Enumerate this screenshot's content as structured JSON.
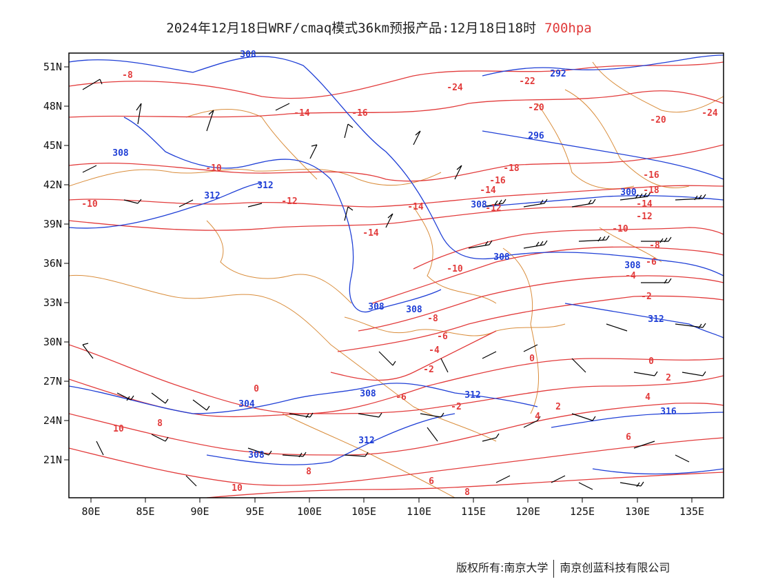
{
  "title": {
    "main": "2024年12月18日WRF/cmaq模式36km预报产品:12月18日18时",
    "level": "700hpa"
  },
  "colors": {
    "temperature": "#e23b3b",
    "height": "#1f3fd6",
    "wind": "#000000",
    "border": "#d98c3a",
    "frame": "#000000"
  },
  "axes": {
    "lat_labels": [
      "51N",
      "48N",
      "45N",
      "42N",
      "39N",
      "36N",
      "33N",
      "30N",
      "27N",
      "24N",
      "21N"
    ],
    "lon_labels": [
      "80E",
      "85E",
      "90E",
      "95E",
      "100E",
      "105E",
      "110E",
      "115E",
      "120E",
      "125E",
      "130E",
      "135E"
    ]
  },
  "contours": {
    "temperature_labels": [
      "-8",
      "-24",
      "-22",
      "-14",
      "-16",
      "-20",
      "-20",
      "-24",
      "-10",
      "-18",
      "-16",
      "-14",
      "-12",
      "-14",
      "-12",
      "-10",
      "-14",
      "-16",
      "-18",
      "-14",
      "-12",
      "-10",
      "-8",
      "-6",
      "-4",
      "-10",
      "-8",
      "-6",
      "-4",
      "-2",
      "-2",
      "0",
      "0",
      "-2",
      "2",
      "2",
      "0",
      "4",
      "4",
      "10",
      "8",
      "6",
      "6",
      "8",
      "8",
      "10",
      "-6"
    ],
    "height_labels": [
      "308",
      "292",
      "296",
      "308",
      "312",
      "312",
      "300",
      "308",
      "308",
      "308",
      "308",
      "308",
      "312",
      "308",
      "312",
      "316",
      "312",
      "304",
      "308"
    ]
  },
  "copyright": {
    "left": "版权所有:南京大学",
    "right": "南京创蓝科技有限公司"
  }
}
